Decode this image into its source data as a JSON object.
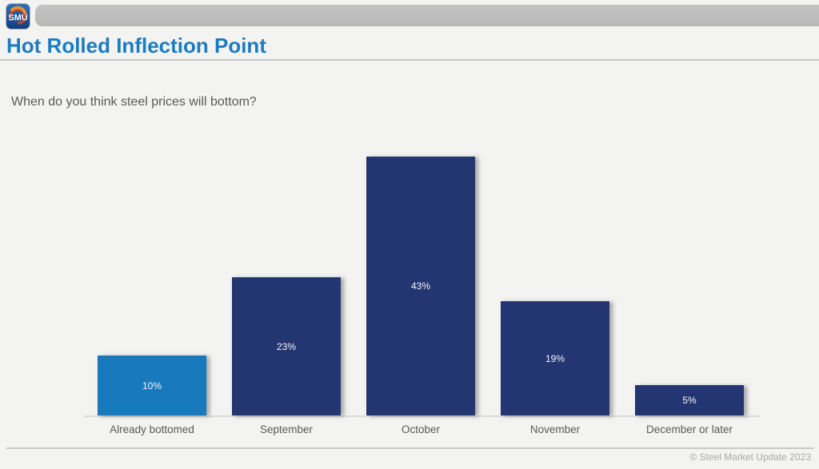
{
  "header": {
    "logo_text": "SMU"
  },
  "page": {
    "title": "Hot Rolled Inflection Point",
    "question": "When do you think steel prices will bottom?",
    "footer": "© Steel Market Update 2023"
  },
  "colors": {
    "title_blue": "#1B7CC2",
    "bar_navy": "#243671",
    "bar_highlight_blue": "#1879BC",
    "header_bar_gray": "#BDBDBD",
    "background": "#F3F3F1",
    "label_gray": "#595959",
    "footer_gray": "#A8A8A8"
  },
  "chart_data": {
    "type": "bar",
    "title": "Hot Rolled Inflection Point",
    "subtitle": "When do you think steel prices will bottom?",
    "categories": [
      "Already bottomed",
      "September",
      "October",
      "November",
      "December or later"
    ],
    "values": [
      10,
      23,
      43,
      19,
      5
    ],
    "value_labels": [
      "10%",
      "23%",
      "43%",
      "19%",
      "5%"
    ],
    "bar_colors": [
      "#1879BC",
      "#243671",
      "#243671",
      "#243671",
      "#243671"
    ],
    "xlabel": "",
    "ylabel": "",
    "ylim": [
      0,
      45
    ],
    "grid": false,
    "legend": false,
    "data_label_position": "center"
  }
}
